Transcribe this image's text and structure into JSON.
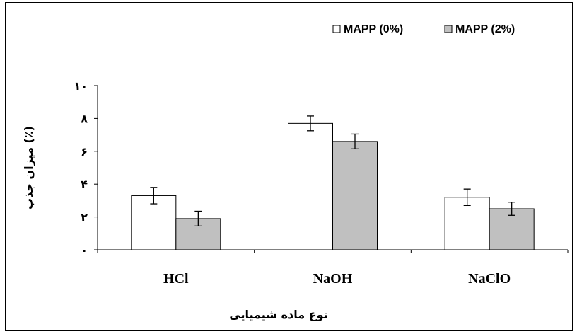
{
  "colors": {
    "background": "#ffffff",
    "axis": "#000000",
    "series_0": "#ffffff",
    "series_2": "#c0c0c0"
  },
  "chart_data": {
    "type": "bar",
    "categories": [
      "HCl",
      "NaOH",
      "NaClO"
    ],
    "series": [
      {
        "name": "MAPP (0%)",
        "values": [
          3.3,
          7.7,
          3.2
        ],
        "errors": [
          0.5,
          0.45,
          0.5
        ],
        "color": "#ffffff"
      },
      {
        "name": "MAPP (2%)",
        "values": [
          1.9,
          6.6,
          2.5
        ],
        "errors": [
          0.45,
          0.45,
          0.4
        ],
        "color": "#c0c0c0"
      }
    ],
    "ylim": [
      0,
      10
    ],
    "yticks": [
      0,
      2,
      4,
      6,
      8,
      10
    ],
    "ytick_labels": [
      "۰",
      "۲",
      "۴",
      "۶",
      "۸",
      "۱۰"
    ],
    "xlabel": "نوع ماده شیمیایی",
    "ylabel": "میزان جذب (٪)",
    "legend_position": "top-right",
    "grid": false,
    "error_bars": true
  }
}
